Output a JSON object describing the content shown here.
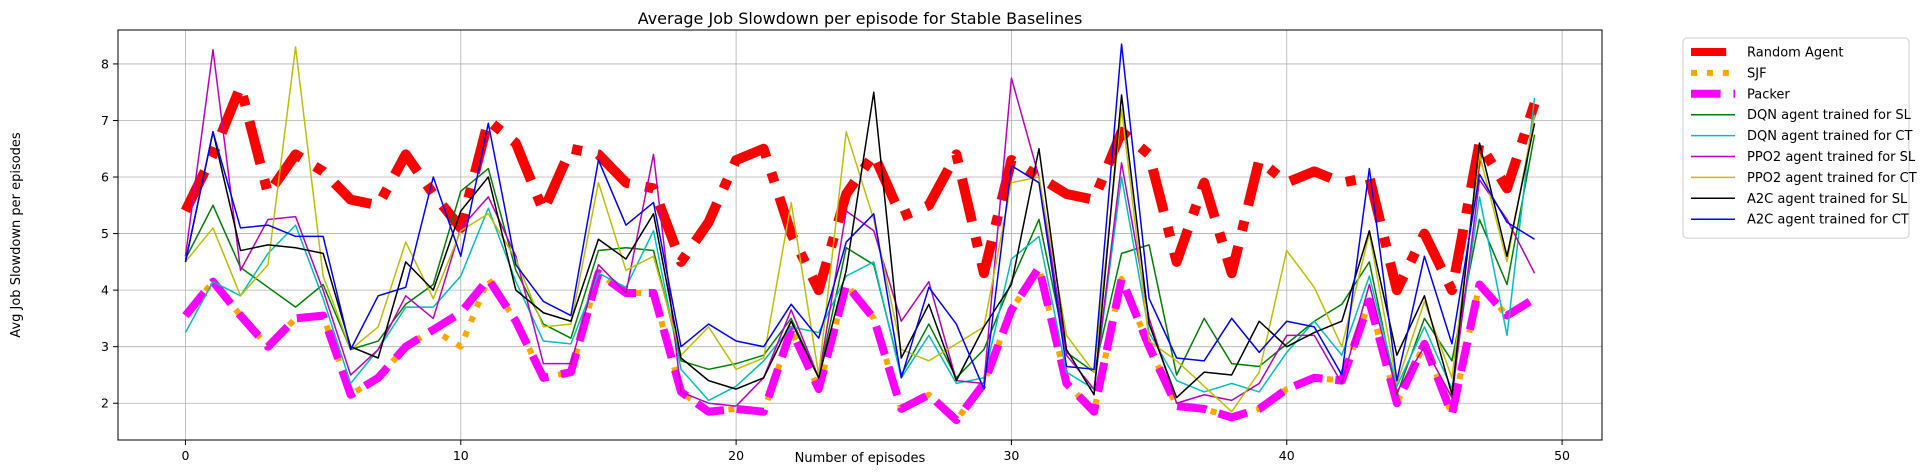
{
  "chart_data": {
    "type": "line",
    "title": "Average Job Slowdown per episode for Stable Baselines",
    "xlabel": "Number of episodes",
    "ylabel": "Avg Job Slowdown per episodes",
    "xlim": [
      -2.45,
      51.45
    ],
    "ylim": [
      1.35,
      8.6
    ],
    "xticks": [
      0,
      10,
      20,
      30,
      40,
      50
    ],
    "yticks": [
      2,
      3,
      4,
      5,
      6,
      7,
      8
    ],
    "grid": true,
    "legend_position": "outside-right",
    "x": [
      0,
      1,
      2,
      3,
      4,
      5,
      6,
      7,
      8,
      9,
      10,
      11,
      12,
      13,
      14,
      15,
      16,
      17,
      18,
      19,
      20,
      21,
      22,
      23,
      24,
      25,
      26,
      27,
      28,
      29,
      30,
      31,
      32,
      33,
      34,
      35,
      36,
      37,
      38,
      39,
      40,
      41,
      42,
      43,
      44,
      45,
      46,
      47,
      48,
      49
    ],
    "series": [
      {
        "name": "Random Agent",
        "color": "#ff0000",
        "style": "dashdot",
        "width": 10,
        "values": [
          5.4,
          6.4,
          7.6,
          5.7,
          6.4,
          6.1,
          5.6,
          5.5,
          6.4,
          5.7,
          5.1,
          7.0,
          6.6,
          5.4,
          6.5,
          6.4,
          5.9,
          5.8,
          4.5,
          5.2,
          6.3,
          6.5,
          5.0,
          4.0,
          5.7,
          6.4,
          5.3,
          5.5,
          6.4,
          4.3,
          6.3,
          6.0,
          5.7,
          5.6,
          6.8,
          6.4,
          4.5,
          5.9,
          4.3,
          6.3,
          5.9,
          6.1,
          5.9,
          6.0,
          4.0,
          5.0,
          4.0,
          6.6,
          5.8,
          7.3
        ]
      },
      {
        "name": "SJF",
        "color": "#ffa500",
        "style": "dotted",
        "width": 6,
        "values": [
          3.55,
          4.15,
          3.55,
          3.0,
          3.5,
          3.55,
          2.15,
          2.45,
          3.0,
          3.3,
          3.0,
          4.2,
          3.45,
          2.45,
          2.55,
          4.3,
          3.95,
          3.95,
          2.2,
          1.85,
          1.9,
          1.85,
          3.3,
          2.25,
          4.1,
          3.5,
          1.9,
          2.15,
          1.7,
          2.35,
          3.65,
          4.4,
          2.35,
          1.85,
          4.2,
          3.0,
          1.95,
          1.9,
          1.75,
          1.9,
          2.25,
          2.45,
          2.4,
          3.8,
          2.0,
          3.05,
          1.8,
          4.1,
          3.55,
          3.85
        ]
      },
      {
        "name": "Packer",
        "color": "#ff00ff",
        "style": "dashed",
        "width": 8,
        "values": [
          3.55,
          4.15,
          3.55,
          3.0,
          3.5,
          3.55,
          2.15,
          2.45,
          3.0,
          3.3,
          3.6,
          4.2,
          3.45,
          2.45,
          2.55,
          4.3,
          3.95,
          3.95,
          2.2,
          1.85,
          1.9,
          1.85,
          3.3,
          2.25,
          4.1,
          3.5,
          1.9,
          2.15,
          1.7,
          2.35,
          3.65,
          4.4,
          2.35,
          1.85,
          4.2,
          3.0,
          1.95,
          1.9,
          1.75,
          1.9,
          2.25,
          2.45,
          2.4,
          3.8,
          2.0,
          3.05,
          1.8,
          4.1,
          3.55,
          3.85
        ]
      },
      {
        "name": "DQN agent trained for SL",
        "color": "#008000",
        "style": "solid",
        "width": 1.5,
        "values": [
          4.55,
          5.5,
          4.4,
          4.05,
          3.7,
          4.1,
          2.95,
          3.1,
          3.75,
          4.1,
          5.75,
          6.15,
          4.35,
          3.4,
          3.15,
          4.7,
          4.75,
          4.7,
          2.75,
          2.6,
          2.7,
          2.85,
          3.5,
          2.45,
          4.75,
          4.45,
          2.5,
          3.4,
          2.45,
          2.95,
          4.15,
          5.25,
          2.9,
          2.55,
          4.65,
          4.8,
          2.5,
          3.5,
          2.7,
          2.65,
          3.05,
          3.45,
          3.75,
          4.5,
          2.15,
          3.5,
          2.75,
          5.25,
          4.1,
          6.75
        ]
      },
      {
        "name": "DQN agent trained for CT",
        "color": "#00bfbf",
        "style": "solid",
        "width": 1.5,
        "values": [
          3.25,
          4.15,
          3.9,
          4.65,
          5.15,
          3.85,
          2.35,
          2.95,
          3.7,
          3.7,
          4.25,
          5.45,
          4.15,
          3.1,
          3.05,
          4.3,
          4.05,
          5.05,
          2.6,
          2.05,
          2.3,
          2.75,
          3.35,
          3.25,
          4.25,
          4.5,
          2.45,
          3.2,
          2.35,
          2.45,
          4.55,
          4.95,
          2.55,
          2.25,
          6.0,
          3.25,
          2.4,
          2.2,
          2.35,
          2.2,
          2.9,
          3.45,
          2.85,
          4.25,
          2.3,
          3.35,
          2.25,
          5.65,
          3.2,
          7.4
        ]
      },
      {
        "name": "PPO2 agent trained for SL",
        "color": "#bf00bf",
        "style": "solid",
        "width": 1.5,
        "values": [
          4.6,
          8.25,
          4.35,
          5.25,
          5.3,
          4.0,
          2.5,
          2.95,
          3.9,
          3.5,
          5.1,
          5.65,
          4.6,
          2.7,
          2.7,
          4.45,
          3.95,
          6.4,
          2.2,
          2.0,
          1.95,
          2.45,
          3.65,
          2.45,
          5.4,
          5.05,
          3.45,
          4.15,
          2.4,
          2.35,
          7.75,
          6.0,
          2.85,
          2.25,
          6.25,
          3.5,
          2.0,
          2.15,
          2.05,
          2.35,
          3.2,
          3.2,
          2.35,
          4.1,
          2.2,
          3.0,
          2.1,
          5.95,
          5.25,
          4.3
        ]
      },
      {
        "name": "PPO2 agent trained for CT",
        "color": "#bfbf00",
        "style": "solid",
        "width": 1.5,
        "values": [
          4.5,
          5.1,
          3.9,
          4.45,
          8.3,
          4.25,
          2.95,
          3.35,
          4.85,
          3.85,
          5.05,
          5.35,
          4.55,
          3.35,
          3.4,
          5.9,
          4.35,
          4.6,
          2.85,
          3.35,
          2.6,
          2.8,
          5.55,
          2.5,
          6.8,
          5.25,
          2.95,
          2.75,
          3.05,
          3.35,
          5.9,
          6.0,
          3.2,
          2.55,
          7.2,
          3.1,
          2.75,
          2.3,
          1.85,
          2.55,
          4.7,
          4.05,
          3.0,
          5.0,
          2.35,
          3.8,
          2.45,
          6.4,
          4.5,
          7.1
        ]
      },
      {
        "name": "A2C agent trained for SL",
        "color": "#000000",
        "style": "solid",
        "width": 1.5,
        "values": [
          4.5,
          6.8,
          4.7,
          4.8,
          4.75,
          4.65,
          3.0,
          2.8,
          4.5,
          4.0,
          5.4,
          6.0,
          4.0,
          3.6,
          3.45,
          4.9,
          4.55,
          5.35,
          2.8,
          2.4,
          2.25,
          2.45,
          3.45,
          2.45,
          4.35,
          7.5,
          2.8,
          3.75,
          2.4,
          3.35,
          4.1,
          6.5,
          2.95,
          2.15,
          7.45,
          3.4,
          2.1,
          2.55,
          2.5,
          3.45,
          3.0,
          3.25,
          3.45,
          5.05,
          2.85,
          3.9,
          2.15,
          6.6,
          4.6,
          6.95
        ]
      },
      {
        "name": "A2C agent trained for CT",
        "color": "#0000ff",
        "style": "solid",
        "width": 1.5,
        "values": [
          4.5,
          6.8,
          5.1,
          5.15,
          4.95,
          4.95,
          2.95,
          3.9,
          4.05,
          6.0,
          4.6,
          6.95,
          4.45,
          3.8,
          3.55,
          6.3,
          5.15,
          5.55,
          3.0,
          3.4,
          3.1,
          3.0,
          3.75,
          3.15,
          4.85,
          5.35,
          2.45,
          4.05,
          3.4,
          2.25,
          6.2,
          5.9,
          2.65,
          2.6,
          8.35,
          3.85,
          2.8,
          2.75,
          3.5,
          2.9,
          3.45,
          3.35,
          2.5,
          6.15,
          2.4,
          4.6,
          3.05,
          6.05,
          5.2,
          4.9
        ]
      }
    ]
  }
}
